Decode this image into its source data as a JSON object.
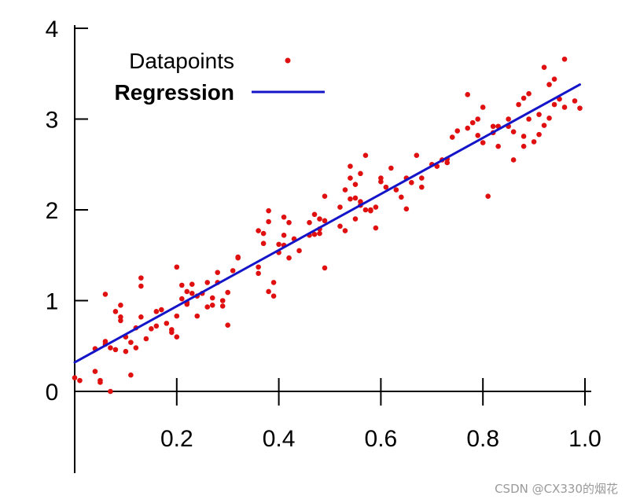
{
  "chart_data": {
    "type": "scatter",
    "xlim": [
      0.0,
      1.0
    ],
    "ylim": [
      -0.9,
      4.0
    ],
    "x_ticks": [
      0.2,
      0.4,
      0.6,
      0.8,
      1.0
    ],
    "x_tick_labels": [
      "0.2",
      "0.4",
      "0.6",
      "0.8",
      "1.0"
    ],
    "y_ticks": [
      0,
      1,
      2,
      3,
      4
    ],
    "y_tick_labels": [
      "0",
      "1",
      "2",
      "3",
      "4"
    ],
    "grid": false,
    "legend_position": "top-left",
    "series": [
      {
        "name": "Datapoints",
        "kind": "scatter",
        "color": "#e01010",
        "points": [
          [
            0.0,
            0.15
          ],
          [
            0.01,
            0.12
          ],
          [
            0.04,
            0.47
          ],
          [
            0.04,
            0.22
          ],
          [
            0.05,
            0.12
          ],
          [
            0.05,
            0.1
          ],
          [
            0.06,
            0.52
          ],
          [
            0.06,
            0.55
          ],
          [
            0.06,
            1.07
          ],
          [
            0.07,
            0.48
          ],
          [
            0.07,
            0.0
          ],
          [
            0.08,
            0.46
          ],
          [
            0.08,
            0.88
          ],
          [
            0.09,
            0.78
          ],
          [
            0.09,
            0.95
          ],
          [
            0.09,
            0.82
          ],
          [
            0.1,
            0.6
          ],
          [
            0.1,
            0.44
          ],
          [
            0.11,
            0.54
          ],
          [
            0.11,
            0.18
          ],
          [
            0.12,
            0.48
          ],
          [
            0.12,
            0.7
          ],
          [
            0.13,
            1.16
          ],
          [
            0.13,
            1.25
          ],
          [
            0.13,
            0.82
          ],
          [
            0.14,
            0.58
          ],
          [
            0.15,
            0.69
          ],
          [
            0.16,
            0.72
          ],
          [
            0.16,
            0.88
          ],
          [
            0.17,
            0.9
          ],
          [
            0.18,
            0.75
          ],
          [
            0.19,
            0.65
          ],
          [
            0.19,
            0.68
          ],
          [
            0.2,
            0.6
          ],
          [
            0.2,
            1.37
          ],
          [
            0.2,
            0.83
          ],
          [
            0.21,
            1.02
          ],
          [
            0.21,
            1.17
          ],
          [
            0.22,
            0.96
          ],
          [
            0.22,
            0.98
          ],
          [
            0.22,
            1.1
          ],
          [
            0.23,
            1.08
          ],
          [
            0.23,
            1.18
          ],
          [
            0.24,
            0.83
          ],
          [
            0.24,
            1.05
          ],
          [
            0.25,
            1.08
          ],
          [
            0.26,
            1.2
          ],
          [
            0.26,
            0.93
          ],
          [
            0.27,
            1.03
          ],
          [
            0.27,
            0.95
          ],
          [
            0.28,
            1.31
          ],
          [
            0.28,
            1.2
          ],
          [
            0.29,
            0.94
          ],
          [
            0.29,
            1.0
          ],
          [
            0.3,
            0.73
          ],
          [
            0.3,
            1.09
          ],
          [
            0.31,
            1.33
          ],
          [
            0.32,
            1.47
          ],
          [
            0.32,
            1.48
          ],
          [
            0.36,
            1.37
          ],
          [
            0.36,
            1.3
          ],
          [
            0.36,
            1.77
          ],
          [
            0.37,
            1.63
          ],
          [
            0.37,
            1.74
          ],
          [
            0.38,
            1.87
          ],
          [
            0.38,
            1.99
          ],
          [
            0.38,
            1.1
          ],
          [
            0.39,
            1.2
          ],
          [
            0.39,
            1.05
          ],
          [
            0.4,
            1.62
          ],
          [
            0.4,
            1.53
          ],
          [
            0.41,
            1.61
          ],
          [
            0.41,
            1.92
          ],
          [
            0.41,
            1.72
          ],
          [
            0.42,
            1.86
          ],
          [
            0.42,
            1.47
          ],
          [
            0.43,
            1.68
          ],
          [
            0.44,
            1.55
          ],
          [
            0.46,
            1.72
          ],
          [
            0.46,
            1.86
          ],
          [
            0.47,
            1.73
          ],
          [
            0.47,
            1.95
          ],
          [
            0.48,
            1.79
          ],
          [
            0.48,
            1.74
          ],
          [
            0.48,
            1.9
          ],
          [
            0.49,
            1.36
          ],
          [
            0.49,
            2.15
          ],
          [
            0.49,
            1.88
          ],
          [
            0.52,
            1.82
          ],
          [
            0.52,
            2.03
          ],
          [
            0.53,
            1.77
          ],
          [
            0.53,
            2.22
          ],
          [
            0.54,
            2.35
          ],
          [
            0.54,
            2.12
          ],
          [
            0.54,
            2.48
          ],
          [
            0.55,
            2.13
          ],
          [
            0.55,
            1.9
          ],
          [
            0.55,
            2.28
          ],
          [
            0.56,
            2.4
          ],
          [
            0.56,
            2.05
          ],
          [
            0.56,
            2.09
          ],
          [
            0.57,
            2.0
          ],
          [
            0.57,
            2.6
          ],
          [
            0.58,
            1.99
          ],
          [
            0.58,
            2.0
          ],
          [
            0.59,
            2.03
          ],
          [
            0.59,
            1.8
          ],
          [
            0.6,
            2.35
          ],
          [
            0.6,
            2.31
          ],
          [
            0.61,
            2.25
          ],
          [
            0.62,
            2.46
          ],
          [
            0.63,
            2.22
          ],
          [
            0.64,
            2.14
          ],
          [
            0.65,
            2.35
          ],
          [
            0.65,
            2.01
          ],
          [
            0.66,
            2.3
          ],
          [
            0.67,
            2.6
          ],
          [
            0.68,
            2.25
          ],
          [
            0.68,
            2.35
          ],
          [
            0.7,
            2.5
          ],
          [
            0.71,
            2.48
          ],
          [
            0.72,
            2.55
          ],
          [
            0.73,
            2.56
          ],
          [
            0.73,
            2.52
          ],
          [
            0.74,
            2.8
          ],
          [
            0.75,
            2.87
          ],
          [
            0.77,
            2.9
          ],
          [
            0.77,
            3.27
          ],
          [
            0.78,
            2.96
          ],
          [
            0.79,
            2.82
          ],
          [
            0.79,
            3.0
          ],
          [
            0.8,
            2.74
          ],
          [
            0.8,
            3.13
          ],
          [
            0.81,
            2.15
          ],
          [
            0.82,
            2.92
          ],
          [
            0.82,
            2.85
          ],
          [
            0.83,
            2.92
          ],
          [
            0.83,
            2.7
          ],
          [
            0.85,
            2.92
          ],
          [
            0.85,
            3.0
          ],
          [
            0.86,
            2.86
          ],
          [
            0.86,
            2.55
          ],
          [
            0.87,
            3.16
          ],
          [
            0.88,
            3.23
          ],
          [
            0.88,
            2.81
          ],
          [
            0.88,
            2.7
          ],
          [
            0.89,
            3.0
          ],
          [
            0.89,
            3.28
          ],
          [
            0.9,
            2.75
          ],
          [
            0.91,
            2.83
          ],
          [
            0.91,
            3.05
          ],
          [
            0.92,
            2.93
          ],
          [
            0.92,
            3.57
          ],
          [
            0.93,
            3.38
          ],
          [
            0.93,
            3.01
          ],
          [
            0.94,
            3.44
          ],
          [
            0.94,
            3.16
          ],
          [
            0.95,
            3.22
          ],
          [
            0.96,
            3.66
          ],
          [
            0.96,
            3.13
          ],
          [
            0.98,
            3.2
          ],
          [
            0.99,
            3.12
          ]
        ]
      },
      {
        "name": "Regression",
        "kind": "line",
        "color": "#1414c8",
        "x": [
          0.0,
          0.99
        ],
        "y": [
          0.32,
          3.38
        ]
      }
    ]
  },
  "watermark": "CSDN @CX330的烟花"
}
